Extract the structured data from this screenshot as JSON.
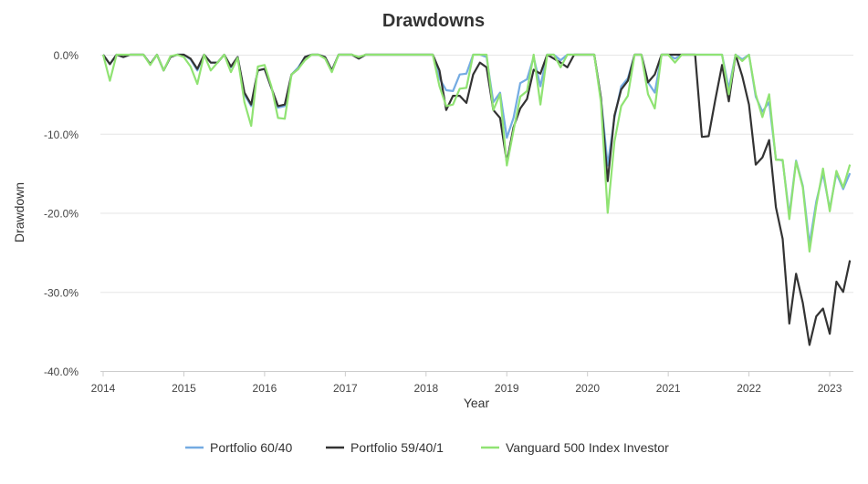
{
  "chart_data": {
    "type": "line",
    "title": "Drawdowns",
    "xlabel": "Year",
    "ylabel": "Drawdown",
    "ylim": [
      -40,
      0
    ],
    "xlim": [
      "2014-01",
      "2023-04"
    ],
    "grid": true,
    "legend_position": "bottom",
    "y_ticks": [
      "0.0%",
      "-10.0%",
      "-20.0%",
      "-30.0%",
      "-40.0%"
    ],
    "y_tick_values": [
      0,
      -10,
      -20,
      -30,
      -40
    ],
    "x_ticks": [
      "2014",
      "2015",
      "2016",
      "2017",
      "2018",
      "2019",
      "2020",
      "2021",
      "2022",
      "2023"
    ],
    "x": [
      "2014-01",
      "2014-02",
      "2014-03",
      "2014-04",
      "2014-05",
      "2014-06",
      "2014-07",
      "2014-08",
      "2014-09",
      "2014-10",
      "2014-11",
      "2014-12",
      "2015-01",
      "2015-02",
      "2015-03",
      "2015-04",
      "2015-05",
      "2015-06",
      "2015-07",
      "2015-08",
      "2015-09",
      "2015-10",
      "2015-11",
      "2015-12",
      "2016-01",
      "2016-02",
      "2016-03",
      "2016-04",
      "2016-05",
      "2016-06",
      "2016-07",
      "2016-08",
      "2016-09",
      "2016-10",
      "2016-11",
      "2016-12",
      "2017-01",
      "2017-02",
      "2017-03",
      "2017-04",
      "2017-05",
      "2017-06",
      "2017-07",
      "2017-08",
      "2017-09",
      "2017-10",
      "2017-11",
      "2017-12",
      "2018-01",
      "2018-02",
      "2018-03",
      "2018-04",
      "2018-05",
      "2018-06",
      "2018-07",
      "2018-08",
      "2018-09",
      "2018-10",
      "2018-11",
      "2018-12",
      "2019-01",
      "2019-02",
      "2019-03",
      "2019-04",
      "2019-05",
      "2019-06",
      "2019-07",
      "2019-08",
      "2019-09",
      "2019-10",
      "2019-11",
      "2019-12",
      "2020-01",
      "2020-02",
      "2020-03",
      "2020-04",
      "2020-05",
      "2020-06",
      "2020-07",
      "2020-08",
      "2020-09",
      "2020-10",
      "2020-11",
      "2020-12",
      "2021-01",
      "2021-02",
      "2021-03",
      "2021-04",
      "2021-05",
      "2021-06",
      "2021-07",
      "2021-08",
      "2021-09",
      "2021-10",
      "2021-11",
      "2021-12",
      "2022-01",
      "2022-02",
      "2022-03",
      "2022-04",
      "2022-05",
      "2022-06",
      "2022-07",
      "2022-08",
      "2022-09",
      "2022-10",
      "2022-11",
      "2022-12",
      "2023-01",
      "2023-02",
      "2023-03",
      "2023-04"
    ],
    "series": [
      {
        "name": "Portfolio 60/40",
        "color": "#74abe2",
        "values": [
          0,
          -1.2,
          0,
          -0.3,
          0,
          0,
          0,
          -1.2,
          0,
          -2,
          -0.3,
          0,
          0,
          -0.6,
          -2,
          0,
          -1,
          -1,
          0,
          -1.6,
          -0.3,
          -5,
          -6.5,
          -2,
          -1.8,
          -4.2,
          -6.7,
          -6.5,
          -2.5,
          -1.6,
          -0.3,
          0,
          0,
          -0.3,
          -2,
          0,
          0,
          0,
          -0.5,
          0,
          0,
          0,
          0,
          0,
          0,
          0,
          0,
          0,
          0,
          0,
          -3,
          -4.5,
          -4.6,
          -2.5,
          -2.4,
          0,
          0,
          -0.3,
          -6,
          -4.8,
          -10.5,
          -8,
          -3.6,
          -3.1,
          -0.3,
          -4,
          0,
          0,
          -0.7,
          0,
          0,
          0,
          0,
          0,
          -5.5,
          -14,
          -8,
          -4,
          -3,
          0,
          0,
          -3.5,
          -4.8,
          0,
          0,
          -0.5,
          0,
          0,
          0,
          0,
          0,
          0,
          0,
          -4.3,
          0,
          -0.6,
          0,
          -5.3,
          -7.2,
          -6,
          -13.2,
          -13.4,
          -20.3,
          -13.4,
          -16.6,
          -24,
          -18.6,
          -15,
          -19.5,
          -15,
          -17,
          -15
        ]
      },
      {
        "name": "Portfolio 59/40/1",
        "color": "#333333",
        "values": [
          0,
          -1.2,
          0,
          -0.3,
          0,
          0,
          0,
          -1.2,
          0,
          -2,
          -0.3,
          0,
          0,
          -0.5,
          -1.8,
          0,
          -1,
          -1,
          0,
          -1.5,
          -0.3,
          -4.8,
          -6.3,
          -2,
          -1.8,
          -4.2,
          -6.5,
          -6.3,
          -2.5,
          -1.8,
          -0.3,
          0,
          0,
          -0.3,
          -2,
          0,
          0,
          0,
          -0.5,
          0,
          0,
          0,
          0,
          0,
          0,
          0,
          0,
          0,
          0,
          0,
          -2,
          -7,
          -5.2,
          -5.2,
          -6.1,
          -2.5,
          -1,
          -1.6,
          -7,
          -8,
          -13.6,
          -9.2,
          -6.8,
          -5.6,
          -1.9,
          -2.4,
          0,
          -0.5,
          -1,
          -1.6,
          0,
          0,
          0,
          0,
          -5.5,
          -16,
          -7.7,
          -4.4,
          -3.3,
          0,
          0,
          -3.5,
          -2.5,
          0,
          0,
          0,
          0,
          0,
          0,
          -10.4,
          -10.3,
          -5.7,
          -1.3,
          -5.9,
          0,
          -2.7,
          -6.3,
          -13.9,
          -13,
          -10.8,
          -19.3,
          -23.3,
          -34,
          -27.7,
          -31.4,
          -36.7,
          -33.1,
          -32.1,
          -35.3,
          -28.7,
          -30,
          -26
        ]
      },
      {
        "name": "Vanguard 500 Index Investor",
        "color": "#90e373",
        "values": [
          0,
          -3.3,
          0,
          0,
          0,
          0,
          0,
          -1.3,
          0,
          -2,
          -0.2,
          0,
          -0.3,
          -1.5,
          -3.7,
          0,
          -2,
          -1,
          0,
          -2.2,
          -0.4,
          -6,
          -9,
          -1.5,
          -1.3,
          -4,
          -8,
          -8.1,
          -2.5,
          -1.8,
          -0.7,
          0,
          0,
          -0.5,
          -2.2,
          0,
          0,
          0,
          -0.3,
          0,
          0,
          0,
          0,
          0,
          0,
          0,
          0,
          0,
          0,
          0,
          -4,
          -6.5,
          -6.3,
          -4.3,
          -4.2,
          0,
          0,
          0,
          -7,
          -5,
          -14,
          -9.6,
          -5.3,
          -4.6,
          0,
          -6.3,
          0,
          0,
          -1.6,
          0,
          0,
          0,
          0,
          0,
          -6,
          -20,
          -11,
          -6.5,
          -5.2,
          0,
          0,
          -5,
          -6.8,
          0,
          0,
          -1,
          0,
          0,
          0,
          0,
          0,
          0,
          0,
          -5,
          0,
          -0.8,
          0,
          -5,
          -7.9,
          -5,
          -13.3,
          -13.3,
          -20.8,
          -13.5,
          -16.8,
          -24.9,
          -19.1,
          -14.4,
          -19.8,
          -14.7,
          -16.8,
          -13.9
        ]
      }
    ]
  }
}
